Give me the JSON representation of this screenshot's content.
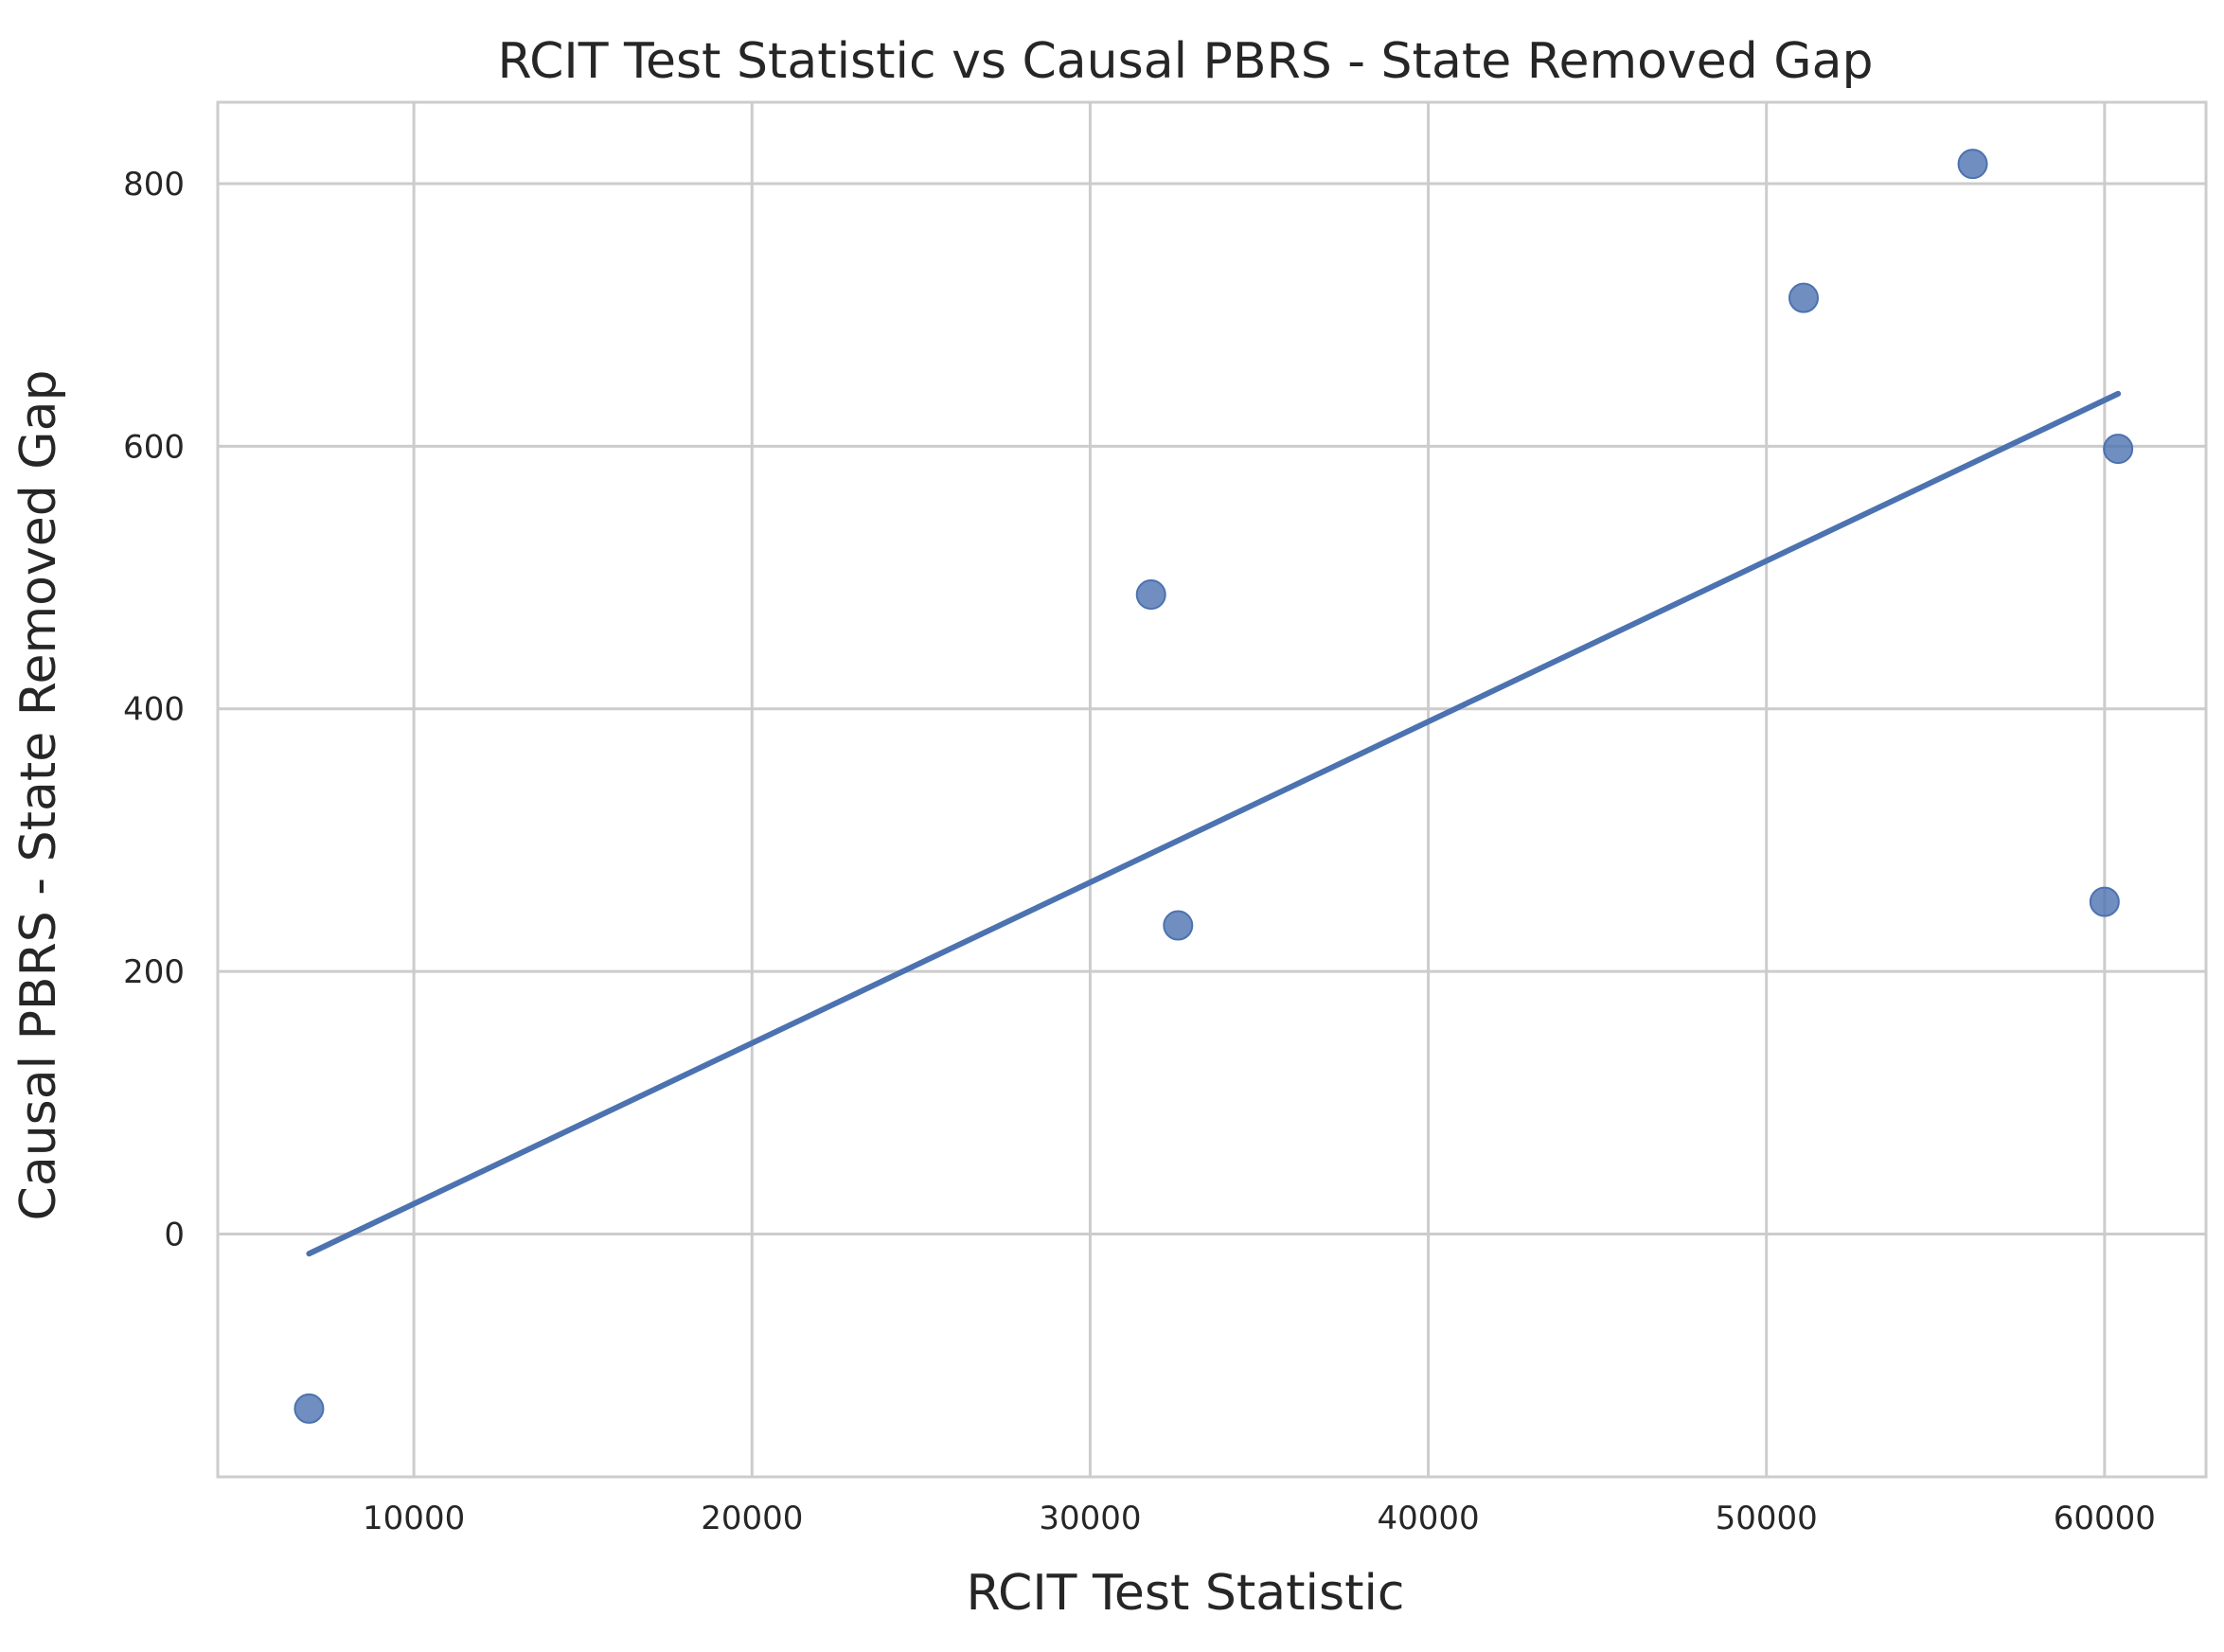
{
  "chart_data": {
    "type": "scatter",
    "title": "RCIT Test Statistic vs Causal PBRS - State Removed Gap",
    "xlabel": "RCIT Test Statistic",
    "ylabel": "Causal PBRS - State Removed Gap",
    "xlim": [
      4200,
      63000
    ],
    "ylim": [
      -185,
      862
    ],
    "xticks": [
      10000,
      20000,
      30000,
      40000,
      50000,
      60000
    ],
    "yticks": [
      0,
      200,
      400,
      600,
      800
    ],
    "xtick_labels": [
      "10000",
      "20000",
      "30000",
      "40000",
      "50000",
      "60000"
    ],
    "ytick_labels": [
      "0",
      "200",
      "400",
      "600",
      "800"
    ],
    "grid": true,
    "legend": "none",
    "series": [
      {
        "kind": "points",
        "color": "#4c72b0",
        "points": [
          {
            "x": 6900,
            "y": -133
          },
          {
            "x": 31800,
            "y": 487
          },
          {
            "x": 32600,
            "y": 235
          },
          {
            "x": 51100,
            "y": 713
          },
          {
            "x": 56100,
            "y": 815
          },
          {
            "x": 60000,
            "y": 253
          },
          {
            "x": 60400,
            "y": 598
          }
        ]
      },
      {
        "kind": "regression-line",
        "color": "#4c72b0",
        "points": [
          {
            "x": 6900,
            "y": -15
          },
          {
            "x": 60400,
            "y": 640
          }
        ]
      }
    ]
  }
}
